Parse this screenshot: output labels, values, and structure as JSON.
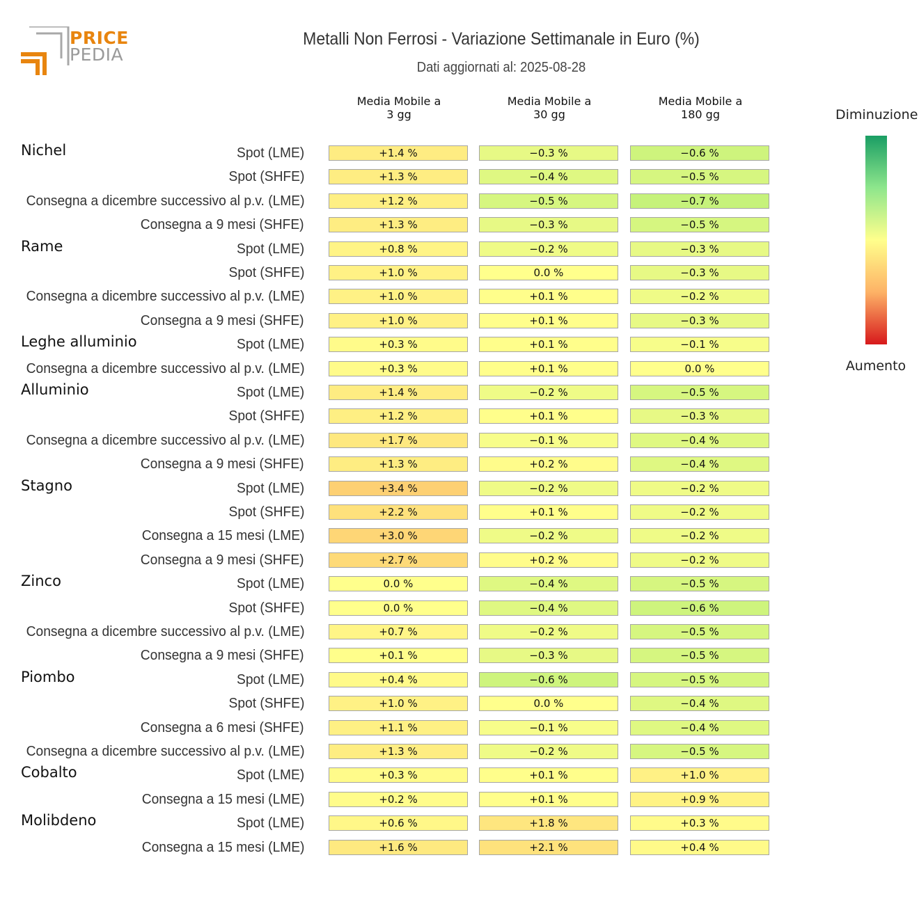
{
  "logo": {
    "line1": "PRICE",
    "line2": "PEDIA"
  },
  "title": "Metalli Non Ferrosi - Variazione Settimanale in Euro (%)",
  "subtitle": "Dati aggiornati al: 2025-08-28",
  "legend": {
    "top_label": "Diminuzione",
    "bottom_label": "Aumento"
  },
  "colors": {
    "high_decrease": "#1a9e64",
    "neutral": "#ffff8c",
    "high_increase": "#d7191c"
  },
  "chart_data": {
    "type": "heatmap",
    "columns": [
      "Media Mobile a\n3 gg",
      "Media Mobile a\n30 gg",
      "Media Mobile a\n180 gg"
    ],
    "unit": "%",
    "groups": [
      {
        "name": "Nichel",
        "rows": [
          {
            "label": "Spot (LME)",
            "values": [
              1.4,
              -0.3,
              -0.6
            ]
          },
          {
            "label": "Spot (SHFE)",
            "values": [
              1.3,
              -0.4,
              -0.5
            ]
          },
          {
            "label": "Consegna a dicembre successivo al p.v. (LME)",
            "values": [
              1.2,
              -0.5,
              -0.7
            ]
          },
          {
            "label": "Consegna a 9 mesi (SHFE)",
            "values": [
              1.3,
              -0.3,
              -0.5
            ]
          }
        ]
      },
      {
        "name": "Rame",
        "rows": [
          {
            "label": "Spot (LME)",
            "values": [
              0.8,
              -0.2,
              -0.3
            ]
          },
          {
            "label": "Spot (SHFE)",
            "values": [
              1.0,
              0.0,
              -0.3
            ]
          },
          {
            "label": "Consegna a dicembre successivo al p.v. (LME)",
            "values": [
              1.0,
              0.1,
              -0.2
            ]
          },
          {
            "label": "Consegna a 9 mesi (SHFE)",
            "values": [
              1.0,
              0.1,
              -0.3
            ]
          }
        ]
      },
      {
        "name": "Leghe alluminio",
        "rows": [
          {
            "label": "Spot (LME)",
            "values": [
              0.3,
              0.1,
              -0.1
            ]
          },
          {
            "label": "Consegna a dicembre successivo al p.v. (LME)",
            "values": [
              0.3,
              0.1,
              0.0
            ]
          }
        ]
      },
      {
        "name": "Alluminio",
        "rows": [
          {
            "label": "Spot (LME)",
            "values": [
              1.4,
              -0.2,
              -0.5
            ]
          },
          {
            "label": "Spot (SHFE)",
            "values": [
              1.2,
              0.1,
              -0.3
            ]
          },
          {
            "label": "Consegna a dicembre successivo al p.v. (LME)",
            "values": [
              1.7,
              -0.1,
              -0.4
            ]
          },
          {
            "label": "Consegna a 9 mesi (SHFE)",
            "values": [
              1.3,
              0.2,
              -0.4
            ]
          }
        ]
      },
      {
        "name": "Stagno",
        "rows": [
          {
            "label": "Spot (LME)",
            "values": [
              3.4,
              -0.2,
              -0.2
            ]
          },
          {
            "label": "Spot (SHFE)",
            "values": [
              2.2,
              0.1,
              -0.2
            ]
          },
          {
            "label": "Consegna a 15 mesi (LME)",
            "values": [
              3.0,
              -0.2,
              -0.2
            ]
          },
          {
            "label": "Consegna a 9 mesi (SHFE)",
            "values": [
              2.7,
              0.2,
              -0.2
            ]
          }
        ]
      },
      {
        "name": "Zinco",
        "rows": [
          {
            "label": "Spot (LME)",
            "values": [
              0.0,
              -0.4,
              -0.5
            ]
          },
          {
            "label": "Spot (SHFE)",
            "values": [
              0.0,
              -0.4,
              -0.6
            ]
          },
          {
            "label": "Consegna a dicembre successivo al p.v. (LME)",
            "values": [
              0.7,
              -0.2,
              -0.5
            ]
          },
          {
            "label": "Consegna a 9 mesi (SHFE)",
            "values": [
              0.1,
              -0.3,
              -0.5
            ]
          }
        ]
      },
      {
        "name": "Piombo",
        "rows": [
          {
            "label": "Spot (LME)",
            "values": [
              0.4,
              -0.6,
              -0.5
            ]
          },
          {
            "label": "Spot (SHFE)",
            "values": [
              1.0,
              0.0,
              -0.4
            ]
          },
          {
            "label": "Consegna a 6 mesi (SHFE)",
            "values": [
              1.1,
              -0.1,
              -0.4
            ]
          },
          {
            "label": "Consegna a dicembre successivo al p.v. (LME)",
            "values": [
              1.3,
              -0.2,
              -0.5
            ]
          }
        ]
      },
      {
        "name": "Cobalto",
        "rows": [
          {
            "label": "Spot (LME)",
            "values": [
              0.3,
              0.1,
              1.0
            ]
          },
          {
            "label": "Consegna a 15 mesi (LME)",
            "values": [
              0.2,
              0.1,
              0.9
            ]
          }
        ]
      },
      {
        "name": "Molibdeno",
        "rows": [
          {
            "label": "Spot (LME)",
            "values": [
              0.6,
              1.8,
              0.3
            ]
          },
          {
            "label": "Consegna a 15 mesi (LME)",
            "values": [
              1.6,
              2.1,
              0.4
            ]
          }
        ]
      }
    ]
  }
}
